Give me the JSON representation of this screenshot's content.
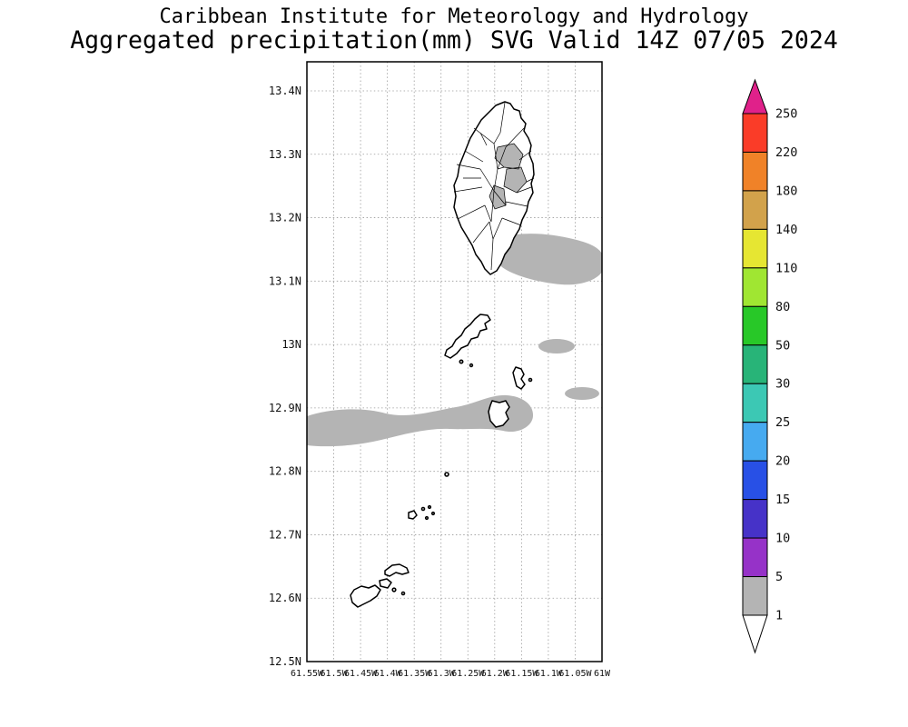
{
  "header": {
    "line1": "Caribbean Institute for Meteorology and Hydrology",
    "line2": "Aggregated precipitation(mm) SVG Valid 14Z 07/05 2024"
  },
  "map": {
    "lat_ticks": [
      "13.4N",
      "13.3N",
      "13.2N",
      "13.1N",
      "13N",
      "12.9N",
      "12.8N",
      "12.7N",
      "12.6N",
      "12.5N"
    ],
    "lon_ticks": [
      "61.55W",
      "61.5W",
      "61.45W",
      "61.4W",
      "61.35W",
      "61.3W",
      "61.25W",
      "61.2W",
      "61.15W",
      "61.1W",
      "61.05W",
      "61W"
    ],
    "precip_shade_color": "#b4b4b4"
  },
  "colorbar": {
    "boundary_labels": [
      "250",
      "220",
      "180",
      "140",
      "110",
      "80",
      "50",
      "30",
      "25",
      "20",
      "15",
      "10",
      "5",
      "1"
    ],
    "colors_top_to_bottom": [
      "#e0218a",
      "#fa3c28",
      "#f08228",
      "#d2a24b",
      "#e6e632",
      "#a0e632",
      "#28c828",
      "#28b478",
      "#3cc8b4",
      "#46aaf0",
      "#2850e6",
      "#4632c8",
      "#9632c8",
      "#b4b4b4",
      "#ffffff"
    ]
  },
  "chart_data": {
    "type": "map",
    "title": "Aggregated precipitation(mm) SVG Valid 14Z 07/05 2024",
    "units": "mm",
    "valid_time": "14Z 07/05 2024",
    "lat_range": [
      "12.5N",
      "13.4N"
    ],
    "lon_range": [
      "61.55W",
      "61W"
    ],
    "scale_levels_mm": [
      1,
      5,
      10,
      15,
      20,
      25,
      30,
      50,
      80,
      110,
      140,
      180,
      220,
      250
    ],
    "shaded_areas_value_range_mm": [
      1,
      5
    ]
  }
}
